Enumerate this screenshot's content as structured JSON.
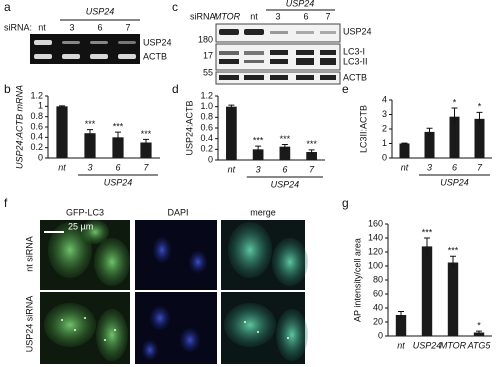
{
  "chart_data": [
    {
      "type": "bar",
      "y_label": "USP24:ACTB mRNA",
      "categories": [
        "nt",
        "3",
        "6",
        "7"
      ],
      "group_label": "USP24",
      "values": [
        1.0,
        0.48,
        0.4,
        0.3
      ],
      "errors": [
        0.01,
        0.07,
        0.1,
        0.06
      ],
      "significance": [
        null,
        "***",
        "***",
        "***"
      ],
      "color": "#1a1a1a",
      "ylim": [
        0,
        1.2
      ],
      "yticks": [
        0,
        0.2,
        0.4,
        0.6,
        0.8,
        1,
        1.2
      ]
    },
    {
      "type": "bar",
      "y_label": "USP24:ACTB",
      "categories": [
        "nt",
        "3",
        "6",
        "7"
      ],
      "group_label": "USP24",
      "values": [
        1.0,
        0.2,
        0.25,
        0.15
      ],
      "errors": [
        0.03,
        0.06,
        0.04,
        0.04
      ],
      "significance": [
        null,
        "***",
        "***",
        "***"
      ],
      "color": "#1a1a1a",
      "ylim": [
        0,
        1.2
      ],
      "yticks": [
        0,
        0.2,
        0.4,
        0.6,
        0.8,
        {
          "value": 1,
          "label": "1.0"
        },
        1.2
      ]
    },
    {
      "type": "bar",
      "y_label": "LC3II:ACTB",
      "categories": [
        "nt",
        "3",
        "6",
        "7"
      ],
      "group_label": "USP24",
      "values": [
        1.0,
        1.8,
        2.85,
        2.7
      ],
      "errors": [
        0.03,
        0.25,
        0.6,
        0.45
      ],
      "significance": [
        null,
        null,
        "*",
        "*"
      ],
      "color": "#1a1a1a",
      "ylim": [
        0,
        4
      ],
      "yticks": [
        0,
        1,
        2,
        3,
        4
      ]
    },
    {
      "type": "bar",
      "y_label": "AP intensity/cell area",
      "categories": [
        "nt",
        "USP24",
        "MTOR",
        "ATG5"
      ],
      "values": [
        30,
        128,
        105,
        5
      ],
      "errors": [
        5,
        12,
        9,
        2
      ],
      "significance": [
        null,
        "***",
        "***",
        "*"
      ],
      "color": "#1a1a1a",
      "ylim": [
        0,
        160
      ],
      "yticks": [
        0,
        20,
        40,
        60,
        80,
        100,
        120,
        140,
        160
      ]
    }
  ],
  "panel_labels": [
    "a",
    "b",
    "c",
    "d",
    "e",
    "f",
    "g"
  ],
  "blots": {
    "a": {
      "siRNA_label": "siRNA:",
      "lanes": [
        "nt",
        "3",
        "6",
        "7"
      ],
      "group_label": "USP24",
      "bands": [
        "USP24",
        "ACTB"
      ]
    },
    "c": {
      "siRNA_label": "siRNA:",
      "lanes": [
        "MTOR",
        "nt",
        "3",
        "6",
        "7"
      ],
      "group_label": "USP24",
      "markers": [
        180,
        17,
        55
      ],
      "bands": [
        "USP24",
        "LC3-I",
        "LC3-II",
        "ACTB"
      ]
    }
  },
  "images": {
    "columns": [
      "GFP-LC3",
      "DAPI",
      "merge"
    ],
    "rows": [
      "nt siRNA",
      "USP24 siRNA"
    ],
    "scale_bar": "25 µm"
  }
}
